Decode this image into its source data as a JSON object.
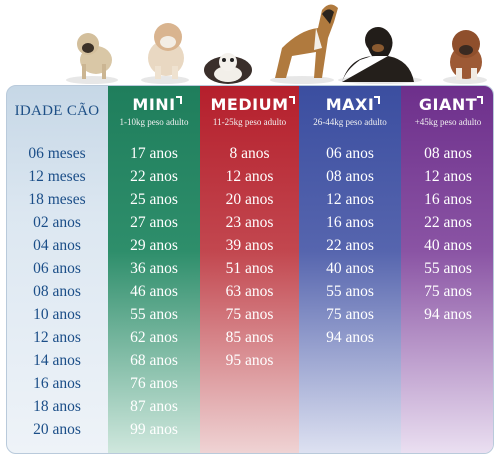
{
  "table": {
    "age_header": "IDADE CÃO",
    "ages": [
      "06 meses",
      "12 meses",
      "18 meses",
      "02   anos",
      "04   anos",
      "06   anos",
      "08   anos",
      "10   anos",
      "12   anos",
      "14   anos",
      "16   anos",
      "18   anos",
      "20   anos"
    ]
  },
  "columns": [
    {
      "key": "mini",
      "label": "MINI",
      "sub": "1-10kg peso adulto",
      "color": "#1f7e5c",
      "values": [
        "17 anos",
        "22 anos",
        "25 anos",
        "27 anos",
        "29 anos",
        "36 anos",
        "46 anos",
        "55 anos",
        "62 anos",
        "68 anos",
        "76 anos",
        "87 anos",
        "99 anos"
      ]
    },
    {
      "key": "medium",
      "label": "MEDIUM",
      "sub": "11-25kg peso adulto",
      "color": "#b51f2c",
      "values": [
        "8 anos",
        "12 anos",
        "20 anos",
        "23 anos",
        "39 anos",
        "51 anos",
        "63 anos",
        "75 anos",
        "85 anos",
        "95 anos"
      ]
    },
    {
      "key": "maxi",
      "label": "MAXI",
      "sub": "26-44kg peso adulto",
      "color": "#3b4ea0",
      "values": [
        "06 anos",
        "08 anos",
        "12 anos",
        "16 anos",
        "22 anos",
        "40 anos",
        "55 anos",
        "75 anos",
        "94 anos"
      ]
    },
    {
      "key": "giant",
      "label": "GIANT",
      "sub": "+45kg peso adulto",
      "color": "#6d2f8b",
      "values": [
        "08 anos",
        "12 anos",
        "16 anos",
        "22 anos",
        "40 anos",
        "55 anos",
        "75 anos",
        "94 anos"
      ]
    }
  ],
  "images": [
    "pug-dog-icon",
    "bulldog-icon",
    "spaniel-dog-icon",
    "boxer-dog-icon",
    "rottweiler-dog-icon",
    "mastiff-puppy-icon"
  ]
}
